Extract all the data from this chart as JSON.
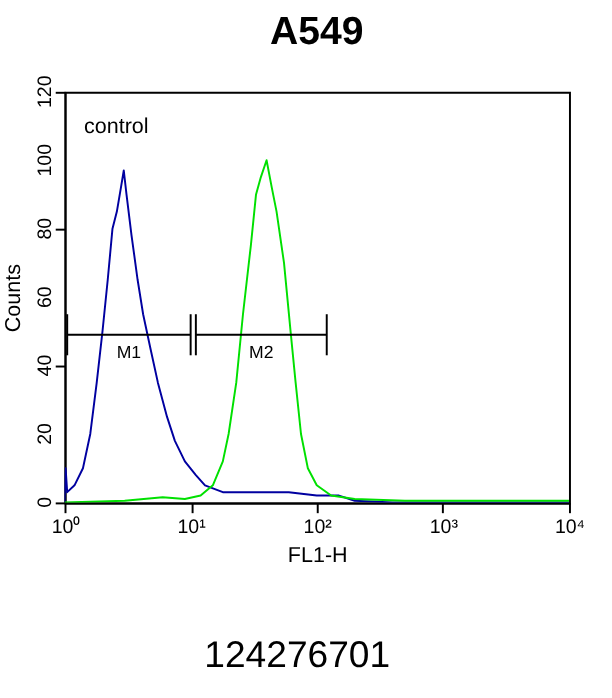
{
  "chart_data": {
    "type": "line",
    "title": "A549",
    "xlabel": "FL1-H",
    "ylabel": "Counts",
    "log": "x",
    "xlim": [
      1,
      10000
    ],
    "ylim": [
      0,
      120
    ],
    "xticks": [
      {
        "value": 1,
        "label": "10⁰"
      },
      {
        "value": 10,
        "label": "10¹"
      },
      {
        "value": 100,
        "label": "10²"
      },
      {
        "value": 1000,
        "label": "10³"
      },
      {
        "value": 10000,
        "label": "10⁴"
      }
    ],
    "yticks": [
      0,
      20,
      40,
      60,
      80,
      100,
      120
    ],
    "marker": "none",
    "line_style": "solid",
    "annotations": [
      "control",
      "124276701"
    ],
    "series": [
      {
        "color": "#0000a0",
        "x": [
          1.0,
          1.02,
          1.05,
          1.2,
          1.4,
          1.6,
          1.8,
          2.0,
          2.2,
          2.4,
          2.6,
          2.8,
          2.95,
          3.1,
          3.4,
          3.8,
          4.2,
          4.8,
          5.5,
          6.5,
          7.5,
          9,
          11,
          13,
          18,
          30,
          60,
          100,
          150,
          200,
          400,
          10000
        ],
        "values": [
          0,
          10,
          3,
          5,
          10,
          20,
          35,
          50,
          65,
          80,
          85,
          92,
          97,
          90,
          78,
          65,
          55,
          45,
          35,
          25,
          18,
          12,
          8,
          5,
          3,
          3,
          3,
          2,
          2,
          0.5,
          0,
          0
        ]
      },
      {
        "color": "#00e000",
        "x": [
          1,
          3,
          6,
          9,
          12,
          15,
          18,
          20,
          23,
          26,
          30,
          33,
          36,
          40,
          44,
          48,
          55,
          62,
          68,
          75,
          85,
          100,
          130,
          200,
          500,
          10000
        ],
        "values": [
          0,
          0.5,
          1.5,
          1,
          2,
          5,
          12,
          20,
          35,
          55,
          75,
          90,
          95,
          100,
          92,
          85,
          70,
          50,
          35,
          20,
          10,
          5,
          2,
          1,
          0.5,
          0.5
        ]
      },
      {
        "name": "M1",
        "color": "#000000",
        "x": [
          1.05,
          10
        ],
        "values": [
          49,
          49
        ],
        "errors": [
          6,
          6
        ]
      },
      {
        "name": "M2",
        "color": "#000000",
        "x": [
          11,
          120
        ],
        "values": [
          49,
          49
        ],
        "errors": [
          6,
          6
        ]
      }
    ]
  }
}
